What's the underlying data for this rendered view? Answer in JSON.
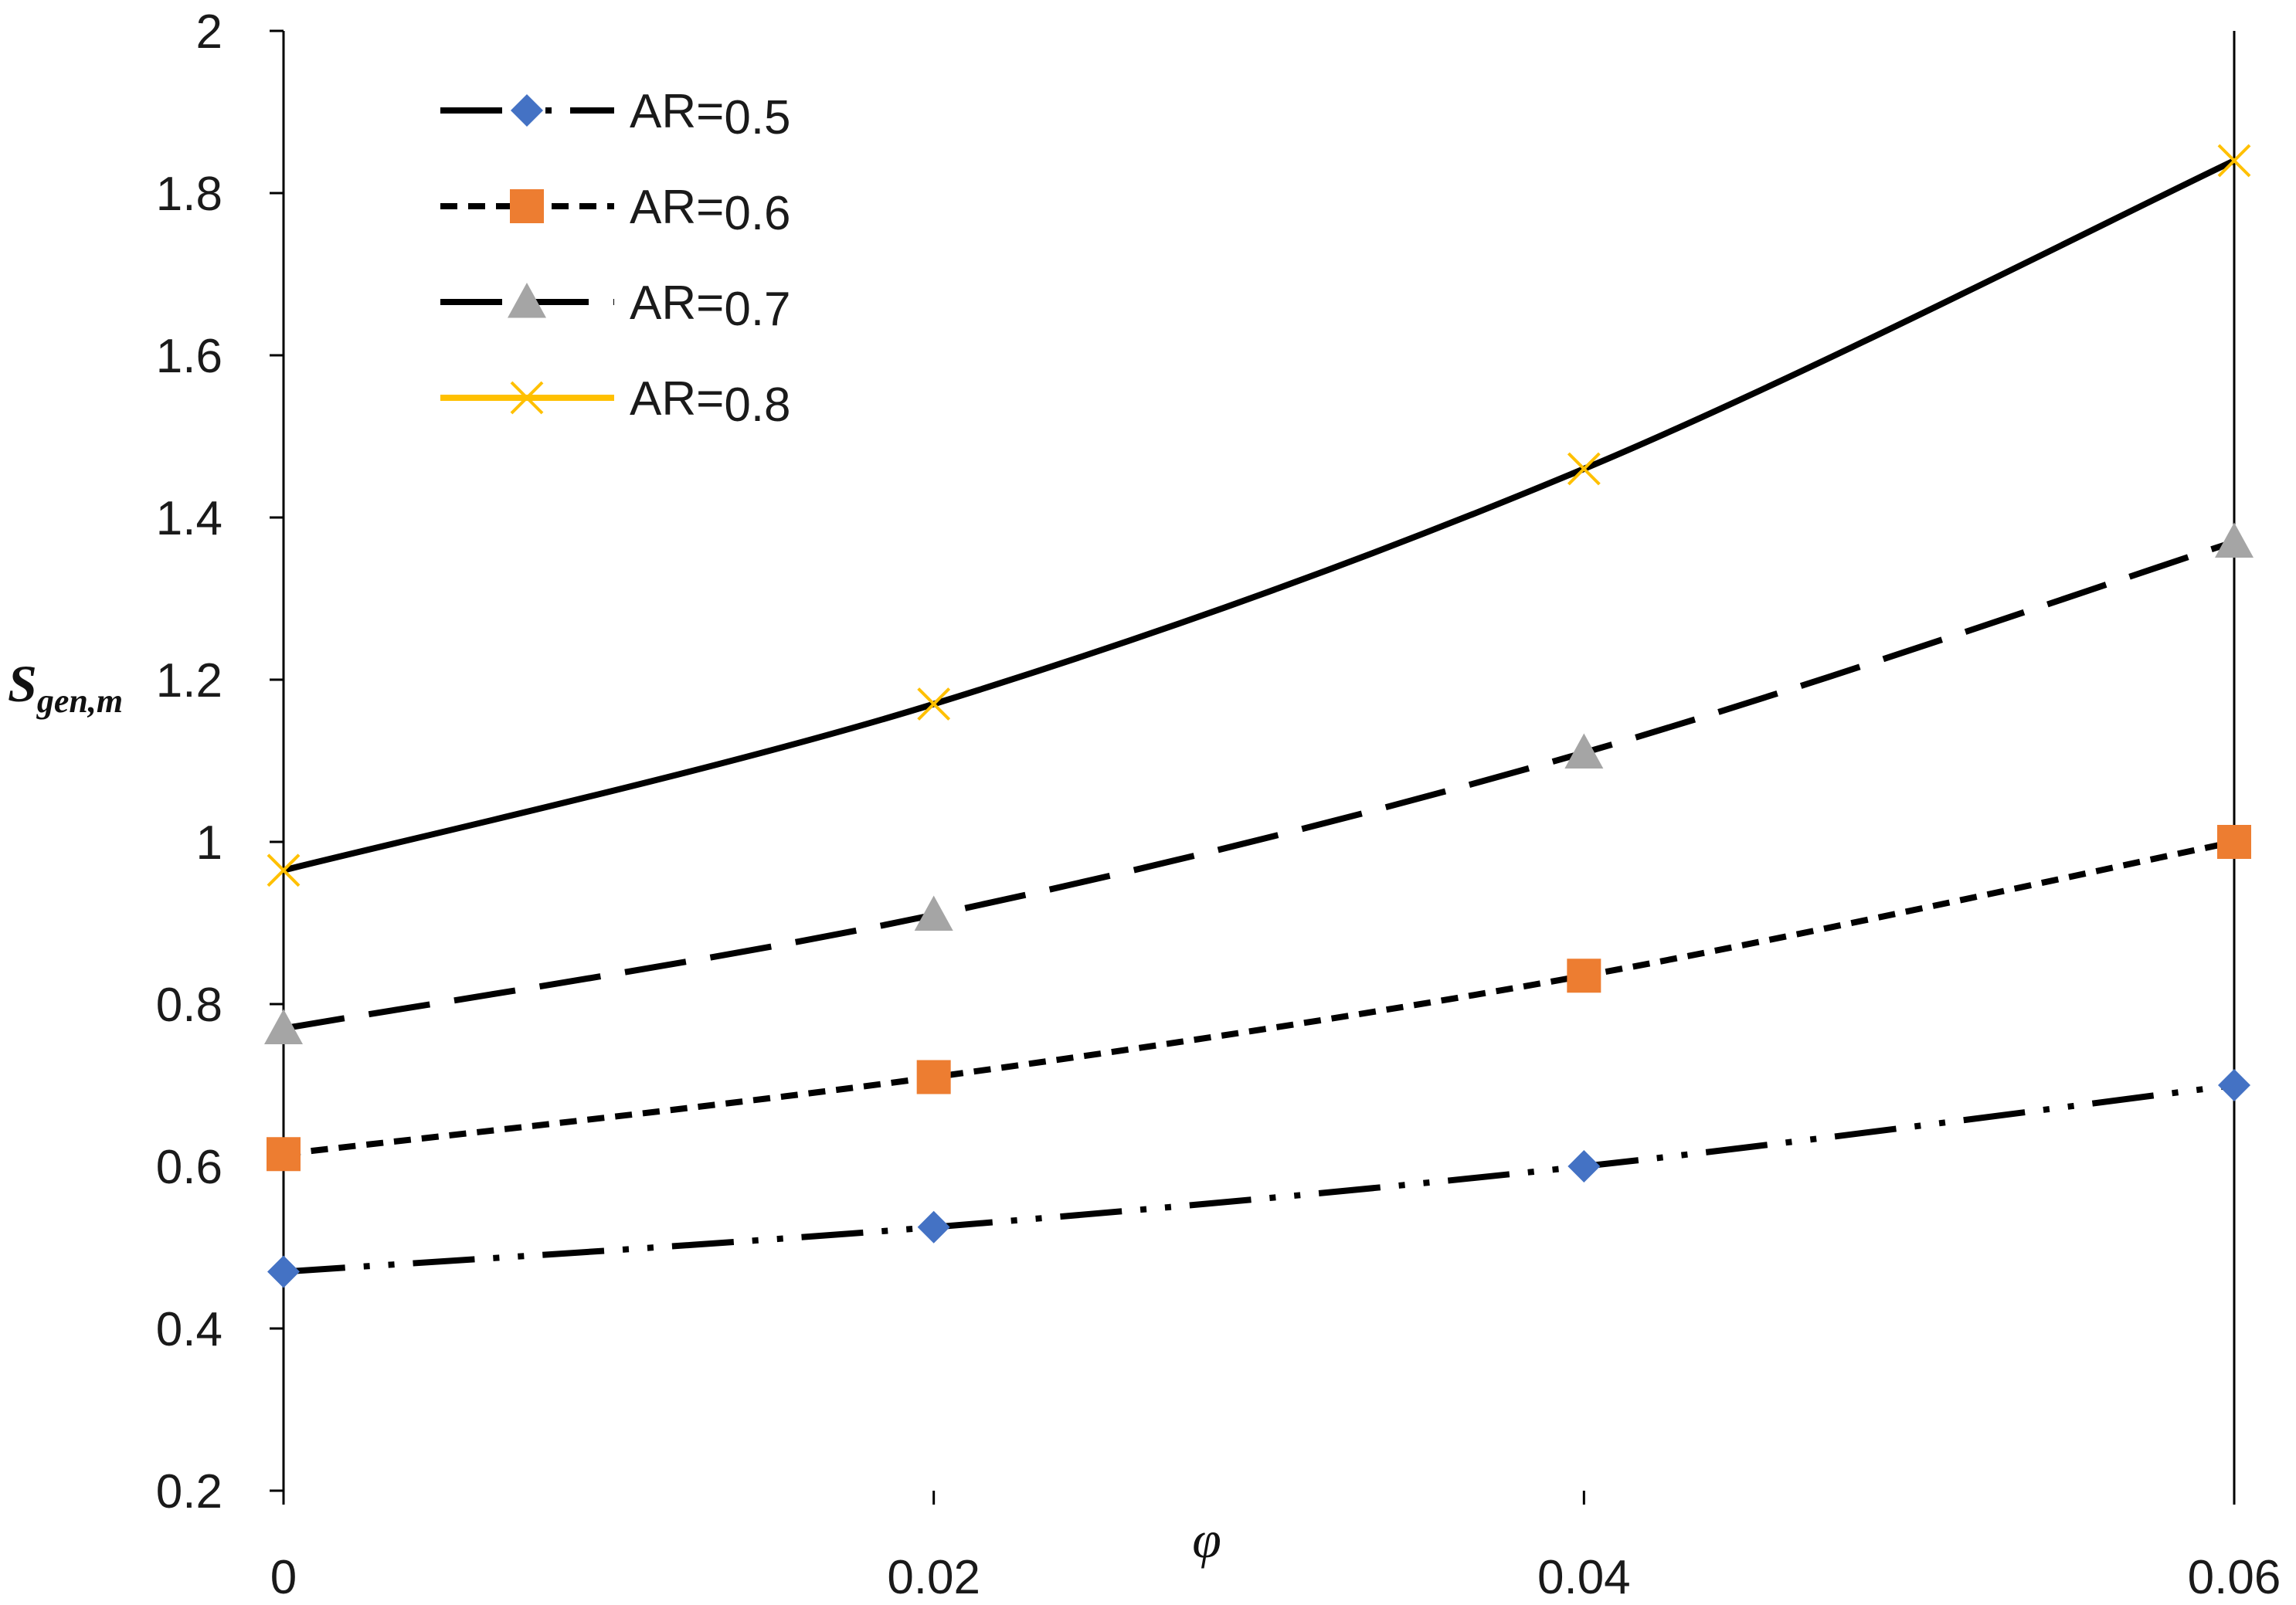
{
  "chart_data": {
    "type": "line",
    "title": "",
    "xlabel": "φ",
    "ylabel": {
      "main": "S",
      "subscript": "gen,m"
    },
    "x": [
      0,
      0.02,
      0.04,
      0.06
    ],
    "xlim": [
      0,
      0.06
    ],
    "ylim": [
      0.2,
      2
    ],
    "x_ticks": [
      0,
      0.02,
      0.04,
      0.06
    ],
    "x_tick_labels": [
      "0",
      "0.02",
      "0.04",
      "0.06"
    ],
    "y_ticks": [
      0.2,
      0.4,
      0.6,
      0.8,
      1,
      1.2,
      1.4,
      1.6,
      1.8,
      2
    ],
    "y_tick_labels": [
      "0.2",
      "0.4",
      "0.6",
      "0.8",
      "1",
      "1.2",
      "1.4",
      "1.6",
      "1.8",
      "2"
    ],
    "grid": false,
    "legend_position": "top-left",
    "series": [
      {
        "name": "AR=0.5",
        "label_prefix": "AR=",
        "label_value": "0.5",
        "values": [
          0.47,
          0.525,
          0.6,
          0.7
        ],
        "marker": "diamond",
        "marker_color": "#4472C4",
        "line_color": "#000000",
        "dash": "dash-dot-dot"
      },
      {
        "name": "AR=0.6",
        "label_prefix": "AR=",
        "label_value": "0.6",
        "values": [
          0.615,
          0.71,
          0.835,
          1.0
        ],
        "marker": "square",
        "marker_color": "#ED7D31",
        "line_color": "#000000",
        "dash": "short-dash"
      },
      {
        "name": "AR=0.7",
        "label_prefix": "AR=",
        "label_value": "0.7",
        "values": [
          0.77,
          0.91,
          1.11,
          1.37
        ],
        "marker": "triangle",
        "marker_color": "#A5A5A5",
        "line_color": "#000000",
        "dash": "long-dash"
      },
      {
        "name": "AR=0.8",
        "label_prefix": "AR=",
        "label_value": "0.8",
        "values": [
          0.965,
          1.17,
          1.46,
          1.84
        ],
        "marker": "x",
        "marker_color": "#FFC000",
        "line_color": "#000000",
        "legend_line_color": "#FFC000",
        "dash": "solid"
      }
    ]
  }
}
